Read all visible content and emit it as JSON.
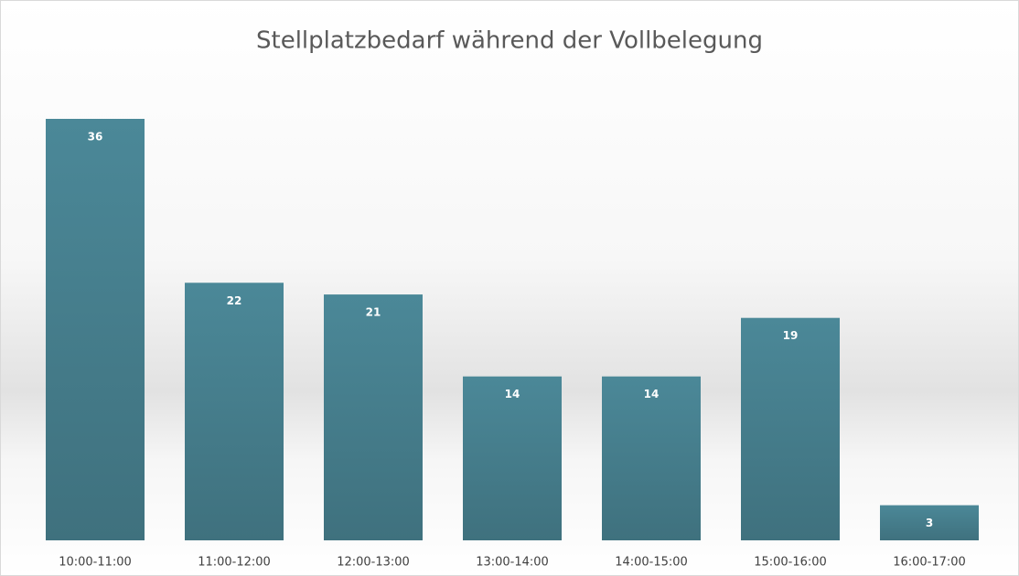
{
  "chart_data": {
    "type": "bar",
    "title": "Stellplatzbedarf während der Vollbelegung",
    "categories": [
      "10:00-11:00",
      "11:00-12:00",
      "12:00-13:00",
      "13:00-14:00",
      "14:00-15:00",
      "15:00-16:00",
      "16:00-17:00"
    ],
    "values": [
      36,
      22,
      21,
      14,
      14,
      19,
      3
    ],
    "color": "#4a8797"
  }
}
